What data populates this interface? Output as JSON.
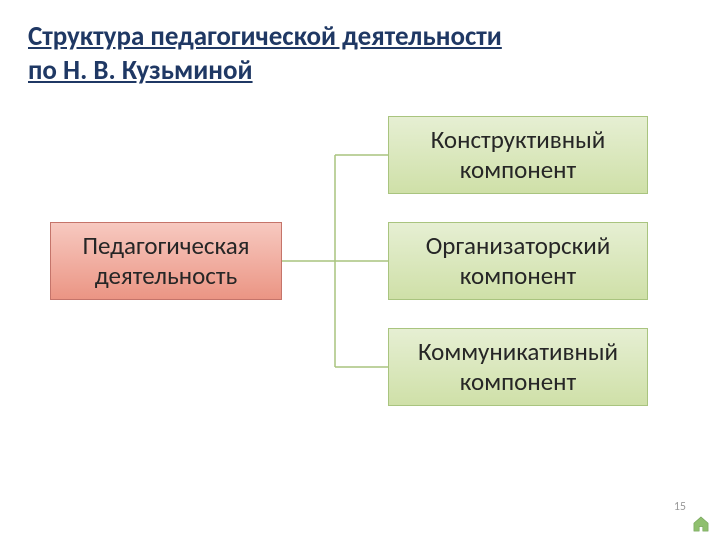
{
  "title": {
    "line1": "Структура педагогической деятельности",
    "line2": "по Н. В. Кузьминой",
    "color": "#1f3864",
    "fontsize": 27
  },
  "diagram": {
    "type": "tree",
    "connector_color": "#a9c47f",
    "connector_width": 1.5,
    "root": {
      "label_line1": "Педагогическая",
      "label_line2": "деятельность",
      "fill_top": "#f7c9c0",
      "fill_bottom": "#eb9584",
      "border_color": "#c5746a",
      "text_color": "#262626",
      "fontsize": 25
    },
    "children": [
      {
        "label_line1": "Конструктивный",
        "label_line2": "компонент",
        "fill_top": "#e6efd3",
        "fill_bottom": "#cfe0a8",
        "border_color": "#a9c47f",
        "text_color": "#262626"
      },
      {
        "label_line1": "Организаторский",
        "label_line2": "компонент",
        "fill_top": "#e6efd3",
        "fill_bottom": "#cfe0a8",
        "border_color": "#a9c47f",
        "text_color": "#262626"
      },
      {
        "label_line1": "Коммуникативный",
        "label_line2": "компонент",
        "fill_top": "#e6efd3",
        "fill_bottom": "#cfe0a8",
        "border_color": "#a9c47f",
        "text_color": "#262626"
      }
    ]
  },
  "page_number": "15",
  "home_icon_color": "#8fbf6e",
  "background_color": "#ffffff"
}
